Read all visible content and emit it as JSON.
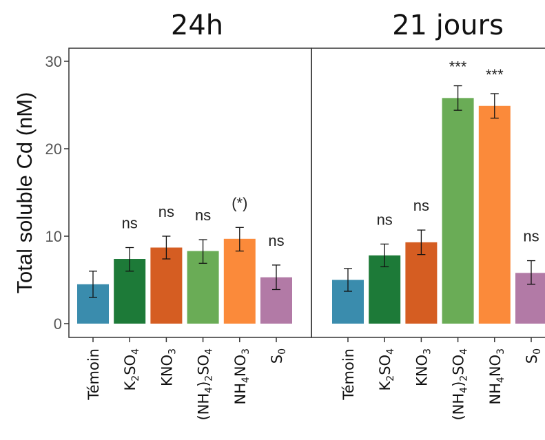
{
  "chart_data": {
    "type": "bar",
    "ylabel": "Total soluble Cd (nM)",
    "ylim": [
      0,
      30.5
    ],
    "yticks": [
      0,
      10,
      20,
      30
    ],
    "grid": false,
    "legend": "none",
    "categories": [
      {
        "label": "Témoin",
        "parts": [
          {
            "t": "Témoin",
            "s": "n"
          }
        ]
      },
      {
        "label": "K2SO4",
        "parts": [
          {
            "t": "K",
            "s": "n"
          },
          {
            "t": "2",
            "s": "sub"
          },
          {
            "t": "SO",
            "s": "n"
          },
          {
            "t": "4",
            "s": "sub"
          }
        ]
      },
      {
        "label": "KNO3",
        "parts": [
          {
            "t": "KNO",
            "s": "n"
          },
          {
            "t": "3",
            "s": "sub"
          }
        ]
      },
      {
        "label": "(NH4)2SO4",
        "parts": [
          {
            "t": "(NH",
            "s": "n"
          },
          {
            "t": "4",
            "s": "sub"
          },
          {
            "t": ")",
            "s": "n"
          },
          {
            "t": "2",
            "s": "sub"
          },
          {
            "t": "SO",
            "s": "n"
          },
          {
            "t": "4",
            "s": "sub"
          }
        ]
      },
      {
        "label": "NH4NO3",
        "parts": [
          {
            "t": "NH",
            "s": "n"
          },
          {
            "t": "4",
            "s": "sub"
          },
          {
            "t": "NO",
            "s": "n"
          },
          {
            "t": "3",
            "s": "sub"
          }
        ]
      },
      {
        "label": "S0",
        "parts": [
          {
            "t": "S",
            "s": "n"
          },
          {
            "t": "0",
            "s": "sub"
          }
        ]
      }
    ],
    "colors": [
      "#3a8cad",
      "#1d7a38",
      "#d55d22",
      "#6aac56",
      "#fb8a3a",
      "#b27aa6"
    ],
    "panels": [
      {
        "title": "24h",
        "values": [
          4.5,
          7.4,
          8.7,
          8.3,
          9.7,
          5.3
        ],
        "err_low": [
          3.0,
          6.0,
          7.4,
          6.9,
          8.3,
          3.9
        ],
        "err_high": [
          6.0,
          8.7,
          10.0,
          9.6,
          11.0,
          6.7
        ],
        "significance": [
          "",
          "ns",
          "ns",
          "ns",
          "(*)",
          "ns"
        ]
      },
      {
        "title": "21 jours",
        "values": [
          5.0,
          7.8,
          9.3,
          25.8,
          24.9,
          5.8
        ],
        "err_low": [
          3.7,
          6.5,
          7.9,
          24.4,
          23.5,
          4.5
        ],
        "err_high": [
          6.3,
          9.1,
          10.7,
          27.2,
          26.3,
          7.2
        ],
        "significance": [
          "",
          "ns",
          "ns",
          "***",
          "***",
          "ns"
        ]
      }
    ]
  }
}
